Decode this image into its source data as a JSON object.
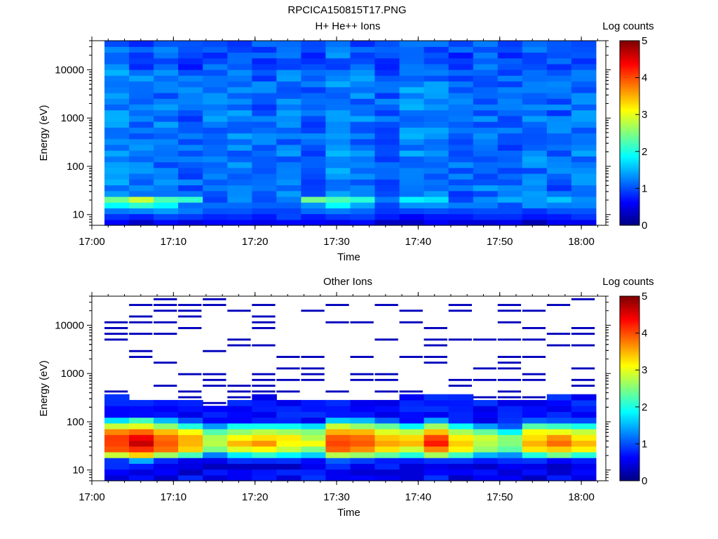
{
  "figure": {
    "title": "RPCICA150815T17.PNG"
  },
  "chart_data": [
    {
      "type": "heatmap",
      "panel": "top",
      "title": "H+ He++ Ions",
      "xlabel": "Time",
      "ylabel": "Energy (eV)",
      "xticks": [
        "17:00",
        "17:10",
        "17:20",
        "17:30",
        "17:40",
        "17:50",
        "18:00"
      ],
      "xlim": [
        "17:00",
        "18:03"
      ],
      "x_start": "17:01",
      "x_step_minutes": 3.2,
      "yscale": "log",
      "ylim": [
        6,
        40000
      ],
      "ytick_values": [
        10,
        100,
        1000,
        10000
      ],
      "yticks": [
        "10",
        "100",
        "1000",
        "10000"
      ],
      "energy_bins": 32,
      "colorbar": {
        "label": "Log counts",
        "range": [
          0,
          5
        ],
        "ticks": [
          "0",
          "1",
          "2",
          "3",
          "4",
          "5"
        ]
      },
      "columns": [
        {
          "time": "17:02",
          "low": [
            0.6,
            0.9,
            1.2,
            1.8,
            2.4
          ],
          "high": 1.3
        },
        {
          "time": "17:05",
          "low": [
            0.4,
            0.8,
            1.3,
            2.1,
            2.8
          ],
          "high": 1.2
        },
        {
          "time": "17:08",
          "low": [
            0.7,
            1.0,
            1.4,
            1.9,
            2.2
          ],
          "high": 1.2
        },
        {
          "time": "17:11",
          "low": [
            0.5,
            0.9,
            1.2,
            1.1,
            2.1
          ],
          "high": 1.1
        },
        {
          "time": "17:14",
          "low": [
            0.6,
            0.8,
            1.0,
            1.1,
            0.9
          ],
          "high": 1.2
        },
        {
          "time": "17:17",
          "low": [
            0.7,
            0.9,
            1.1,
            1.2,
            1.3
          ],
          "high": 1.2
        },
        {
          "time": "17:20",
          "low": [
            0.5,
            0.8,
            1.0,
            1.1,
            1.0
          ],
          "high": 1.1
        },
        {
          "time": "17:23",
          "low": [
            0.6,
            0.9,
            0.9,
            1.1,
            1.2
          ],
          "high": 1.2
        },
        {
          "time": "17:26",
          "low": [
            0.6,
            0.8,
            1.1,
            1.3,
            2.4
          ],
          "high": 1.1
        },
        {
          "time": "17:29",
          "low": [
            0.5,
            0.9,
            1.3,
            1.8,
            2.2
          ],
          "high": 1.3
        },
        {
          "time": "17:32",
          "low": [
            0.6,
            0.9,
            1.1,
            1.4,
            2.0
          ],
          "high": 1.2
        },
        {
          "time": "17:35",
          "low": [
            0.4,
            0.7,
            0.9,
            0.9,
            1.2
          ],
          "high": 1.1
        },
        {
          "time": "17:38",
          "low": [
            0.4,
            0.6,
            1.0,
            1.3,
            1.9
          ],
          "high": 1.3
        },
        {
          "time": "17:41",
          "low": [
            0.6,
            0.8,
            1.0,
            1.3,
            1.7
          ],
          "high": 1.2
        },
        {
          "time": "17:44",
          "low": [
            0.5,
            0.8,
            1.0,
            1.2,
            1.0
          ],
          "high": 1.1
        },
        {
          "time": "17:47",
          "low": [
            0.4,
            0.8,
            1.0,
            1.2,
            1.3
          ],
          "high": 1.2
        },
        {
          "time": "17:50",
          "low": [
            0.6,
            0.8,
            1.0,
            1.0,
            1.5
          ],
          "high": 1.1
        },
        {
          "time": "17:53",
          "low": [
            0.2,
            0.7,
            0.9,
            1.3,
            1.4
          ],
          "high": 1.2
        },
        {
          "time": "17:56",
          "low": [
            0.6,
            0.8,
            1.0,
            1.2,
            1.6
          ],
          "high": 1.1
        },
        {
          "time": "17:59",
          "low": [
            0.6,
            0.9,
            1.0,
            1.2,
            1.3
          ],
          "high": 1.2
        }
      ]
    },
    {
      "type": "heatmap",
      "panel": "bottom",
      "title": "Other Ions",
      "xlabel": "Time",
      "ylabel": "Energy (eV)",
      "xticks": [
        "17:00",
        "17:10",
        "17:20",
        "17:30",
        "17:40",
        "17:50",
        "18:00"
      ],
      "xlim": [
        "17:00",
        "18:03"
      ],
      "x_start": "17:01",
      "x_step_minutes": 3.2,
      "yscale": "log",
      "ylim": [
        6,
        40000
      ],
      "ytick_values": [
        10,
        100,
        1000,
        10000
      ],
      "yticks": [
        "10",
        "100",
        "1000",
        "10000"
      ],
      "energy_bins": 32,
      "colorbar": {
        "label": "Log counts",
        "range": [
          0,
          5
        ],
        "ticks": [
          "0",
          "1",
          "2",
          "3",
          "4",
          "5"
        ]
      },
      "columns": [
        {
          "time": "17:02",
          "peak": 4.2,
          "cutoff_bin": 14
        },
        {
          "time": "17:05",
          "peak": 4.6,
          "cutoff_bin": 13
        },
        {
          "time": "17:08",
          "peak": 4.1,
          "cutoff_bin": 13
        },
        {
          "time": "17:11",
          "peak": 3.6,
          "cutoff_bin": 13
        },
        {
          "time": "17:14",
          "peak": 2.8,
          "cutoff_bin": 12
        },
        {
          "time": "17:17",
          "peak": 3.3,
          "cutoff_bin": 13
        },
        {
          "time": "17:20",
          "peak": 3.5,
          "cutoff_bin": 14
        },
        {
          "time": "17:23",
          "peak": 3.2,
          "cutoff_bin": 13
        },
        {
          "time": "17:26",
          "peak": 3.0,
          "cutoff_bin": 13
        },
        {
          "time": "17:29",
          "peak": 4.2,
          "cutoff_bin": 13
        },
        {
          "time": "17:32",
          "peak": 4.0,
          "cutoff_bin": 13
        },
        {
          "time": "17:35",
          "peak": 3.7,
          "cutoff_bin": 13
        },
        {
          "time": "17:38",
          "peak": 3.3,
          "cutoff_bin": 14
        },
        {
          "time": "17:41",
          "peak": 4.1,
          "cutoff_bin": 14
        },
        {
          "time": "17:44",
          "peak": 3.5,
          "cutoff_bin": 14
        },
        {
          "time": "17:47",
          "peak": 2.9,
          "cutoff_bin": 13
        },
        {
          "time": "17:50",
          "peak": 2.6,
          "cutoff_bin": 13
        },
        {
          "time": "17:53",
          "peak": 3.6,
          "cutoff_bin": 13
        },
        {
          "time": "17:56",
          "peak": 3.7,
          "cutoff_bin": 14
        },
        {
          "time": "17:59",
          "peak": 3.5,
          "cutoff_bin": 14
        }
      ]
    }
  ]
}
